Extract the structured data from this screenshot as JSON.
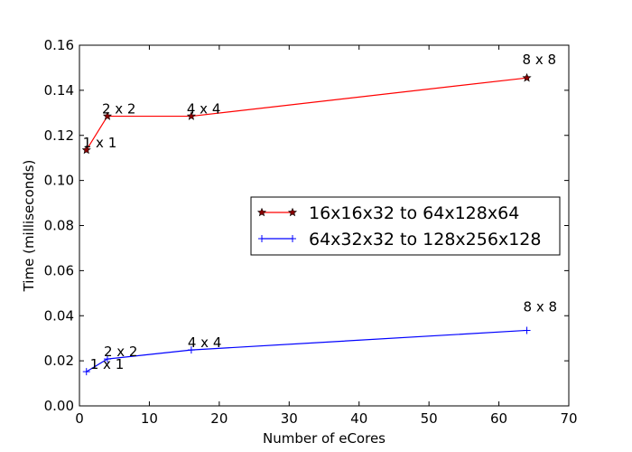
{
  "chart_data": {
    "type": "line",
    "xlabel": "Number of eCores",
    "ylabel": "Time (milliseconds)",
    "xlim": [
      0,
      70
    ],
    "ylim": [
      0,
      0.16
    ],
    "xticks": [
      "0",
      "10",
      "20",
      "30",
      "40",
      "50",
      "60",
      "70"
    ],
    "yticks": [
      "0.00",
      "0.02",
      "0.04",
      "0.06",
      "0.08",
      "0.10",
      "0.12",
      "0.14",
      "0.16"
    ],
    "grid": false,
    "legend_position": "center-right",
    "series": [
      {
        "name": "16x16x32 to 64x128x64",
        "color": "#ff0000",
        "marker": "star",
        "marker_fill": "#8b0000",
        "x": [
          1,
          4,
          16,
          64
        ],
        "y": [
          0.1135,
          0.1285,
          0.1285,
          0.1455
        ],
        "labels": [
          "1 x 1",
          "2 x 2",
          "4 x 4",
          "8 x 8"
        ]
      },
      {
        "name": "64x32x32 to 128x256x128",
        "color": "#0000ff",
        "marker": "plus",
        "marker_fill": "#0000ff",
        "x": [
          1,
          4,
          16,
          64
        ],
        "y": [
          0.0152,
          0.0208,
          0.0248,
          0.0335
        ],
        "labels": [
          "1 x 1",
          "2 x 2",
          "4 x 4",
          "8 x 8"
        ]
      }
    ]
  }
}
